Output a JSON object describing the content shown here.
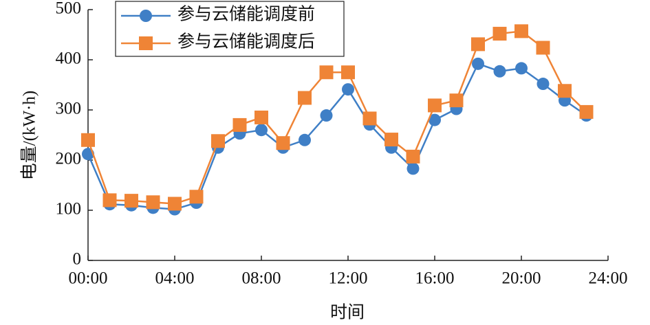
{
  "chart_data": {
    "type": "line",
    "x": [
      0,
      1,
      2,
      3,
      4,
      5,
      6,
      7,
      8,
      9,
      10,
      11,
      12,
      13,
      14,
      15,
      16,
      17,
      18,
      19,
      20,
      21,
      22,
      23
    ],
    "series": [
      {
        "name": "参与云储能调度前",
        "color": "#3f7fc6",
        "marker": "circle",
        "values": [
          212,
          112,
          110,
          105,
          102,
          115,
          225,
          253,
          260,
          225,
          240,
          289,
          341,
          271,
          225,
          183,
          280,
          302,
          392,
          377,
          383,
          352,
          319,
          289
        ]
      },
      {
        "name": "参与云储能调度后",
        "color": "#ef8436",
        "marker": "square",
        "values": [
          240,
          120,
          119,
          116,
          113,
          127,
          238,
          270,
          285,
          234,
          324,
          375,
          375,
          283,
          241,
          207,
          309,
          319,
          431,
          452,
          457,
          424,
          338,
          296
        ]
      }
    ],
    "xlabel": "时间",
    "ylabel": "电量/(kW·h)",
    "xlim": [
      0,
      24
    ],
    "xticks": [
      {
        "value": 0,
        "label": "00:00"
      },
      {
        "value": 4,
        "label": "04:00"
      },
      {
        "value": 8,
        "label": "08:00"
      },
      {
        "value": 12,
        "label": "12:00"
      },
      {
        "value": 16,
        "label": "16:00"
      },
      {
        "value": 20,
        "label": "20:00"
      },
      {
        "value": 24,
        "label": "24:00"
      }
    ],
    "ylim": [
      0,
      500
    ],
    "yticks": [
      0,
      100,
      200,
      300,
      400,
      500
    ],
    "legend": "upper left"
  }
}
